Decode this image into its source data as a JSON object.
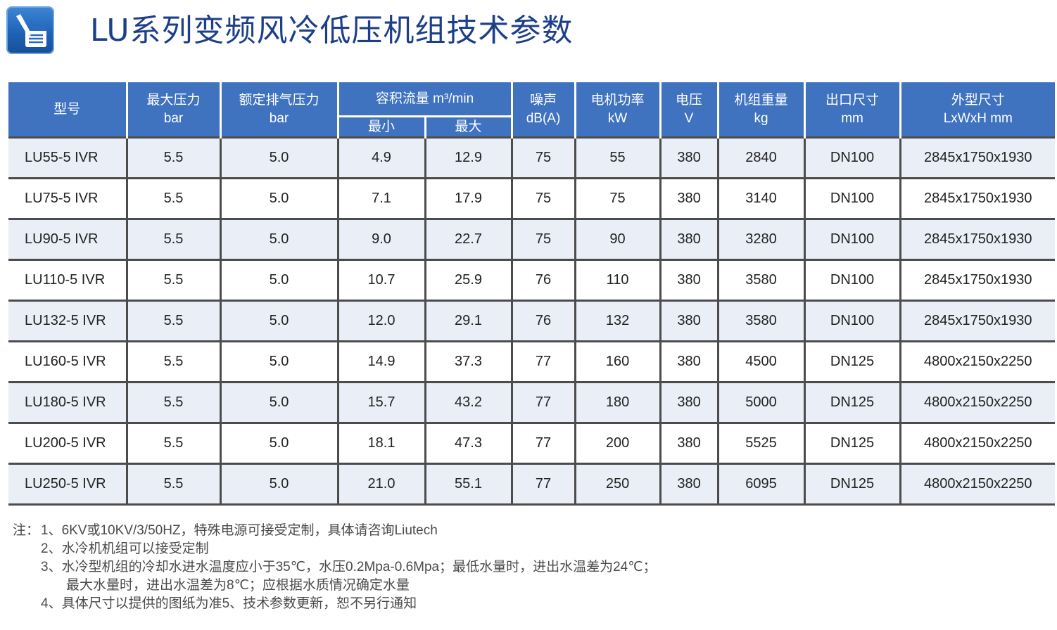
{
  "title": "LU系列变频风冷低压机组技术参数",
  "table": {
    "headers": {
      "model": "型号",
      "max_pressure": "最大压力",
      "max_pressure_unit": "bar",
      "rated_pressure": "额定排气压力",
      "rated_pressure_unit": "bar",
      "flow": "容积流量  m³/min",
      "flow_min": "最小",
      "flow_max": "最大",
      "noise": "噪声",
      "noise_unit": "dB(A)",
      "power": "电机功率",
      "power_unit": "kW",
      "voltage": "电压",
      "voltage_unit": "V",
      "weight": "机组重量",
      "weight_unit": "kg",
      "outlet": "出口尺寸",
      "outlet_unit": "mm",
      "dimensions": "外型尺寸",
      "dimensions_unit": "LxWxH mm"
    },
    "rows": [
      [
        "LU55-5 IVR",
        "5.5",
        "5.0",
        "4.9",
        "12.9",
        "75",
        "55",
        "380",
        "2840",
        "DN100",
        "2845x1750x1930"
      ],
      [
        "LU75-5 IVR",
        "5.5",
        "5.0",
        "7.1",
        "17.9",
        "75",
        "75",
        "380",
        "3140",
        "DN100",
        "2845x1750x1930"
      ],
      [
        "LU90-5 IVR",
        "5.5",
        "5.0",
        "9.0",
        "22.7",
        "75",
        "90",
        "380",
        "3280",
        "DN100",
        "2845x1750x1930"
      ],
      [
        "LU110-5 IVR",
        "5.5",
        "5.0",
        "10.7",
        "25.9",
        "76",
        "110",
        "380",
        "3580",
        "DN100",
        "2845x1750x1930"
      ],
      [
        "LU132-5 IVR",
        "5.5",
        "5.0",
        "12.0",
        "29.1",
        "76",
        "132",
        "380",
        "3580",
        "DN100",
        "2845x1750x1930"
      ],
      [
        "LU160-5 IVR",
        "5.5",
        "5.0",
        "14.9",
        "37.3",
        "77",
        "160",
        "380",
        "4500",
        "DN125",
        "4800x2150x2250"
      ],
      [
        "LU180-5 IVR",
        "5.5",
        "5.0",
        "15.7",
        "43.2",
        "77",
        "180",
        "380",
        "5000",
        "DN125",
        "4800x2150x2250"
      ],
      [
        "LU200-5 IVR",
        "5.5",
        "5.0",
        "18.1",
        "47.3",
        "77",
        "200",
        "380",
        "5525",
        "DN125",
        "4800x2150x2250"
      ],
      [
        "LU250-5 IVR",
        "5.5",
        "5.0",
        "21.0",
        "55.1",
        "77",
        "250",
        "380",
        "6095",
        "DN125",
        "4800x2150x2250"
      ]
    ]
  },
  "notes": {
    "label": "注：",
    "items": [
      "1、6KV或10KV/3/50HZ，特殊电源可接受定制，具体请咨询Liutech",
      "2、水冷机机组可以接受定制",
      "3、水冷型机组的冷却水进水温度应小于35℃，水压0.2Mpa-0.6Mpa；最低水量时，进出水温差为24℃；",
      "最大水量时，进出水温差为8℃；应根据水质情况确定水量",
      "4、具体尺寸以提供的图纸为准5、技术参数更新，恕不另行通知"
    ]
  },
  "colors": {
    "header_bg": "#3f72bf",
    "title": "#1d3f8a",
    "stripe": "#e9eef7"
  },
  "icon": "document-pen-icon"
}
